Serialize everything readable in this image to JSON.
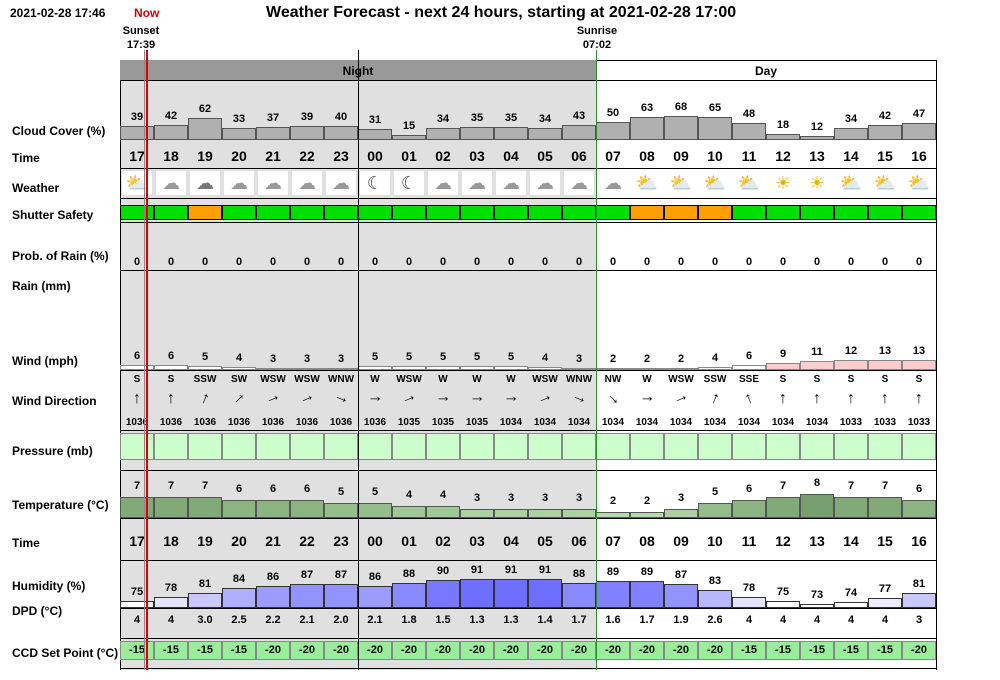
{
  "header": {
    "timestamp": "2021-02-28 17:46",
    "now_label": "Now",
    "title": "Weather Forecast - next 24 hours, starting at 2021-02-28 17:00",
    "sunset_label": "Sunset",
    "sunset_time": "17:39",
    "sunrise_label": "Sunrise",
    "sunrise_time": "07:02",
    "night_label": "Night",
    "day_label": "Day"
  },
  "labels": {
    "cloud_cover": "Cloud Cover (%)",
    "time": "Time",
    "weather": "Weather",
    "shutter_safety": "Shutter Safety",
    "prob_rain": "Prob. of Rain (%)",
    "rain": "Rain (mm)",
    "wind": "Wind (mph)",
    "wind_direction": "Wind Direction",
    "pressure": "Pressure (mb)",
    "temperature": "Temperature (°C)",
    "time2": "Time",
    "humidity": "Humidity (%)",
    "dpd": "DPD (°C)",
    "ccd": "CCD Set Point (°C)"
  },
  "hours": [
    "17",
    "18",
    "19",
    "20",
    "21",
    "22",
    "23",
    "00",
    "01",
    "02",
    "03",
    "04",
    "05",
    "06",
    "07",
    "08",
    "09",
    "10",
    "11",
    "12",
    "13",
    "14",
    "15",
    "16"
  ],
  "is_night": [
    true,
    true,
    true,
    true,
    true,
    true,
    true,
    true,
    true,
    true,
    true,
    true,
    true,
    true,
    false,
    false,
    false,
    false,
    false,
    false,
    false,
    false,
    false,
    false
  ],
  "cloud_cover": [
    39,
    42,
    62,
    33,
    37,
    39,
    40,
    31,
    15,
    34,
    35,
    35,
    34,
    43,
    50,
    63,
    68,
    65,
    48,
    18,
    12,
    34,
    42,
    47
  ],
  "weather_icon": [
    "partly-cloudy-day-icon",
    "partly-cloudy-night-icon",
    "cloudy-night-icon",
    "partly-cloudy-night-icon",
    "partly-cloudy-night-icon",
    "partly-cloudy-night-icon",
    "partly-cloudy-night-icon",
    "moon-icon",
    "moon-icon",
    "partly-cloudy-night-icon",
    "partly-cloudy-night-icon",
    "partly-cloudy-night-icon",
    "partly-cloudy-night-icon",
    "partly-cloudy-night-icon",
    "partly-cloudy-night-icon",
    "partly-cloudy-day-icon",
    "partly-cloudy-day-icon",
    "partly-cloudy-day-icon",
    "partly-cloudy-day-icon",
    "sun-icon",
    "sun-icon",
    "partly-cloudy-day-icon",
    "partly-cloudy-day-icon",
    "partly-cloudy-day-icon"
  ],
  "shutter_safety": [
    "safe",
    "safe",
    "caution",
    "safe",
    "safe",
    "safe",
    "safe",
    "safe",
    "safe",
    "safe",
    "safe",
    "safe",
    "safe",
    "safe",
    "safe",
    "caution",
    "caution",
    "caution",
    "safe",
    "safe",
    "safe",
    "safe",
    "safe",
    "safe"
  ],
  "shutter_colors": {
    "safe": "#00e000",
    "caution": "#ffa000"
  },
  "prob_rain": [
    0,
    0,
    0,
    0,
    0,
    0,
    0,
    0,
    0,
    0,
    0,
    0,
    0,
    0,
    0,
    0,
    0,
    0,
    0,
    0,
    0,
    0,
    0,
    0
  ],
  "wind": [
    6,
    6,
    5,
    4,
    3,
    3,
    3,
    5,
    5,
    5,
    5,
    5,
    4,
    3,
    2,
    2,
    2,
    4,
    6,
    9,
    11,
    12,
    13,
    13
  ],
  "wind_dir": [
    "S",
    "S",
    "SSW",
    "SW",
    "WSW",
    "WSW",
    "WNW",
    "W",
    "WSW",
    "W",
    "W",
    "W",
    "WSW",
    "WNW",
    "NW",
    "W",
    "WSW",
    "SSW",
    "SSE",
    "S",
    "S",
    "S",
    "S",
    "S"
  ],
  "pressure": [
    1036,
    1036,
    1036,
    1036,
    1036,
    1036,
    1036,
    1036,
    1035,
    1035,
    1035,
    1034,
    1034,
    1034,
    1034,
    1034,
    1034,
    1034,
    1034,
    1034,
    1034,
    1033,
    1033,
    1033
  ],
  "temperature": [
    7,
    7,
    7,
    6,
    6,
    6,
    5,
    5,
    4,
    4,
    3,
    3,
    3,
    3,
    2,
    2,
    3,
    5,
    6,
    7,
    8,
    7,
    7,
    6
  ],
  "humidity": [
    75,
    78,
    81,
    84,
    86,
    87,
    87,
    86,
    88,
    90,
    91,
    91,
    91,
    88,
    89,
    89,
    87,
    83,
    78,
    75,
    73,
    74,
    77,
    81
  ],
  "dpd": [
    "4",
    "4",
    "3.0",
    "2.5",
    "2.2",
    "2.1",
    "2.0",
    "2.1",
    "1.8",
    "1.5",
    "1.3",
    "1.3",
    "1.4",
    "1.7",
    "1.6",
    "1.7",
    "1.9",
    "2.6",
    "4",
    "4",
    "4",
    "4",
    "4",
    "3"
  ],
  "ccd": [
    -15,
    -15,
    -15,
    -15,
    -20,
    -20,
    -20,
    -20,
    -20,
    -20,
    -20,
    -20,
    -20,
    -20,
    -20,
    -20,
    -20,
    -20,
    -15,
    -15,
    -15,
    -15,
    -15,
    -20
  ],
  "colors": {
    "night_bg": "#e0e0e0",
    "band_header_night": "#999999",
    "cloud_bar": "#b0b0b0",
    "pressure_fill": "#ccffcc",
    "ccd_fill": "#99ee99",
    "sunset_line": "#e00000",
    "wind_pink": "#ffcccc"
  }
}
